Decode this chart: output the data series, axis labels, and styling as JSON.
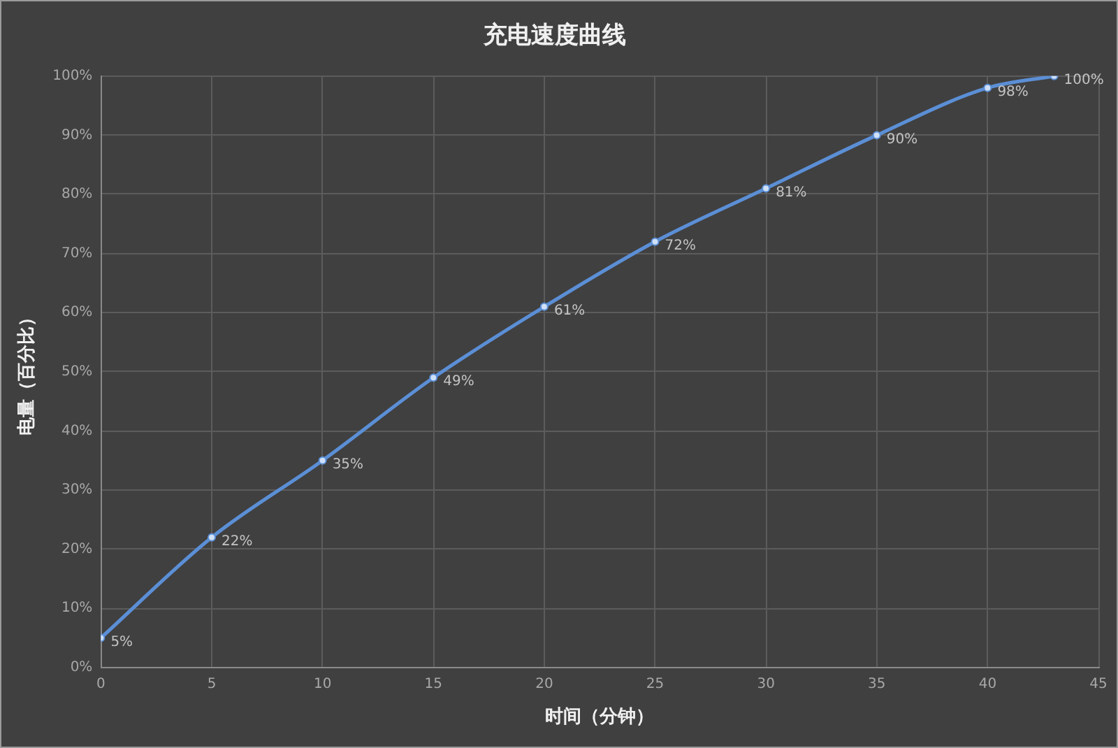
{
  "chart_data": {
    "type": "line",
    "title": "充电速度曲线",
    "xlabel": "时间（分钟）",
    "ylabel": "电量（百分比）",
    "x": [
      0,
      5,
      10,
      15,
      20,
      25,
      30,
      35,
      40,
      43
    ],
    "series": [
      {
        "color": "#5b8fd6",
        "values": [
          5,
          22,
          35,
          49,
          61,
          72,
          81,
          90,
          98,
          100
        ],
        "value_labels": [
          "5%",
          "22%",
          "35%",
          "49%",
          "61%",
          "72%",
          "81%",
          "90%",
          "98%",
          "100%"
        ]
      }
    ],
    "xlim": [
      0,
      45
    ],
    "xticks": [
      0,
      5,
      10,
      15,
      20,
      25,
      30,
      35,
      40,
      45
    ],
    "ylim": [
      0,
      100
    ],
    "yticks": [
      {
        "value": 0,
        "label": "0%"
      },
      {
        "value": 10,
        "label": "10%"
      },
      {
        "value": 20,
        "label": "20%"
      },
      {
        "value": 30,
        "label": "30%"
      },
      {
        "value": 40,
        "label": "40%"
      },
      {
        "value": 50,
        "label": "50%"
      },
      {
        "value": 60,
        "label": "60%"
      },
      {
        "value": 70,
        "label": "70%"
      },
      {
        "value": 80,
        "label": "80%"
      },
      {
        "value": 90,
        "label": "90%"
      },
      {
        "value": 100,
        "label": "100%"
      }
    ],
    "grid": true,
    "marker": "circle",
    "line_style": "solid"
  }
}
